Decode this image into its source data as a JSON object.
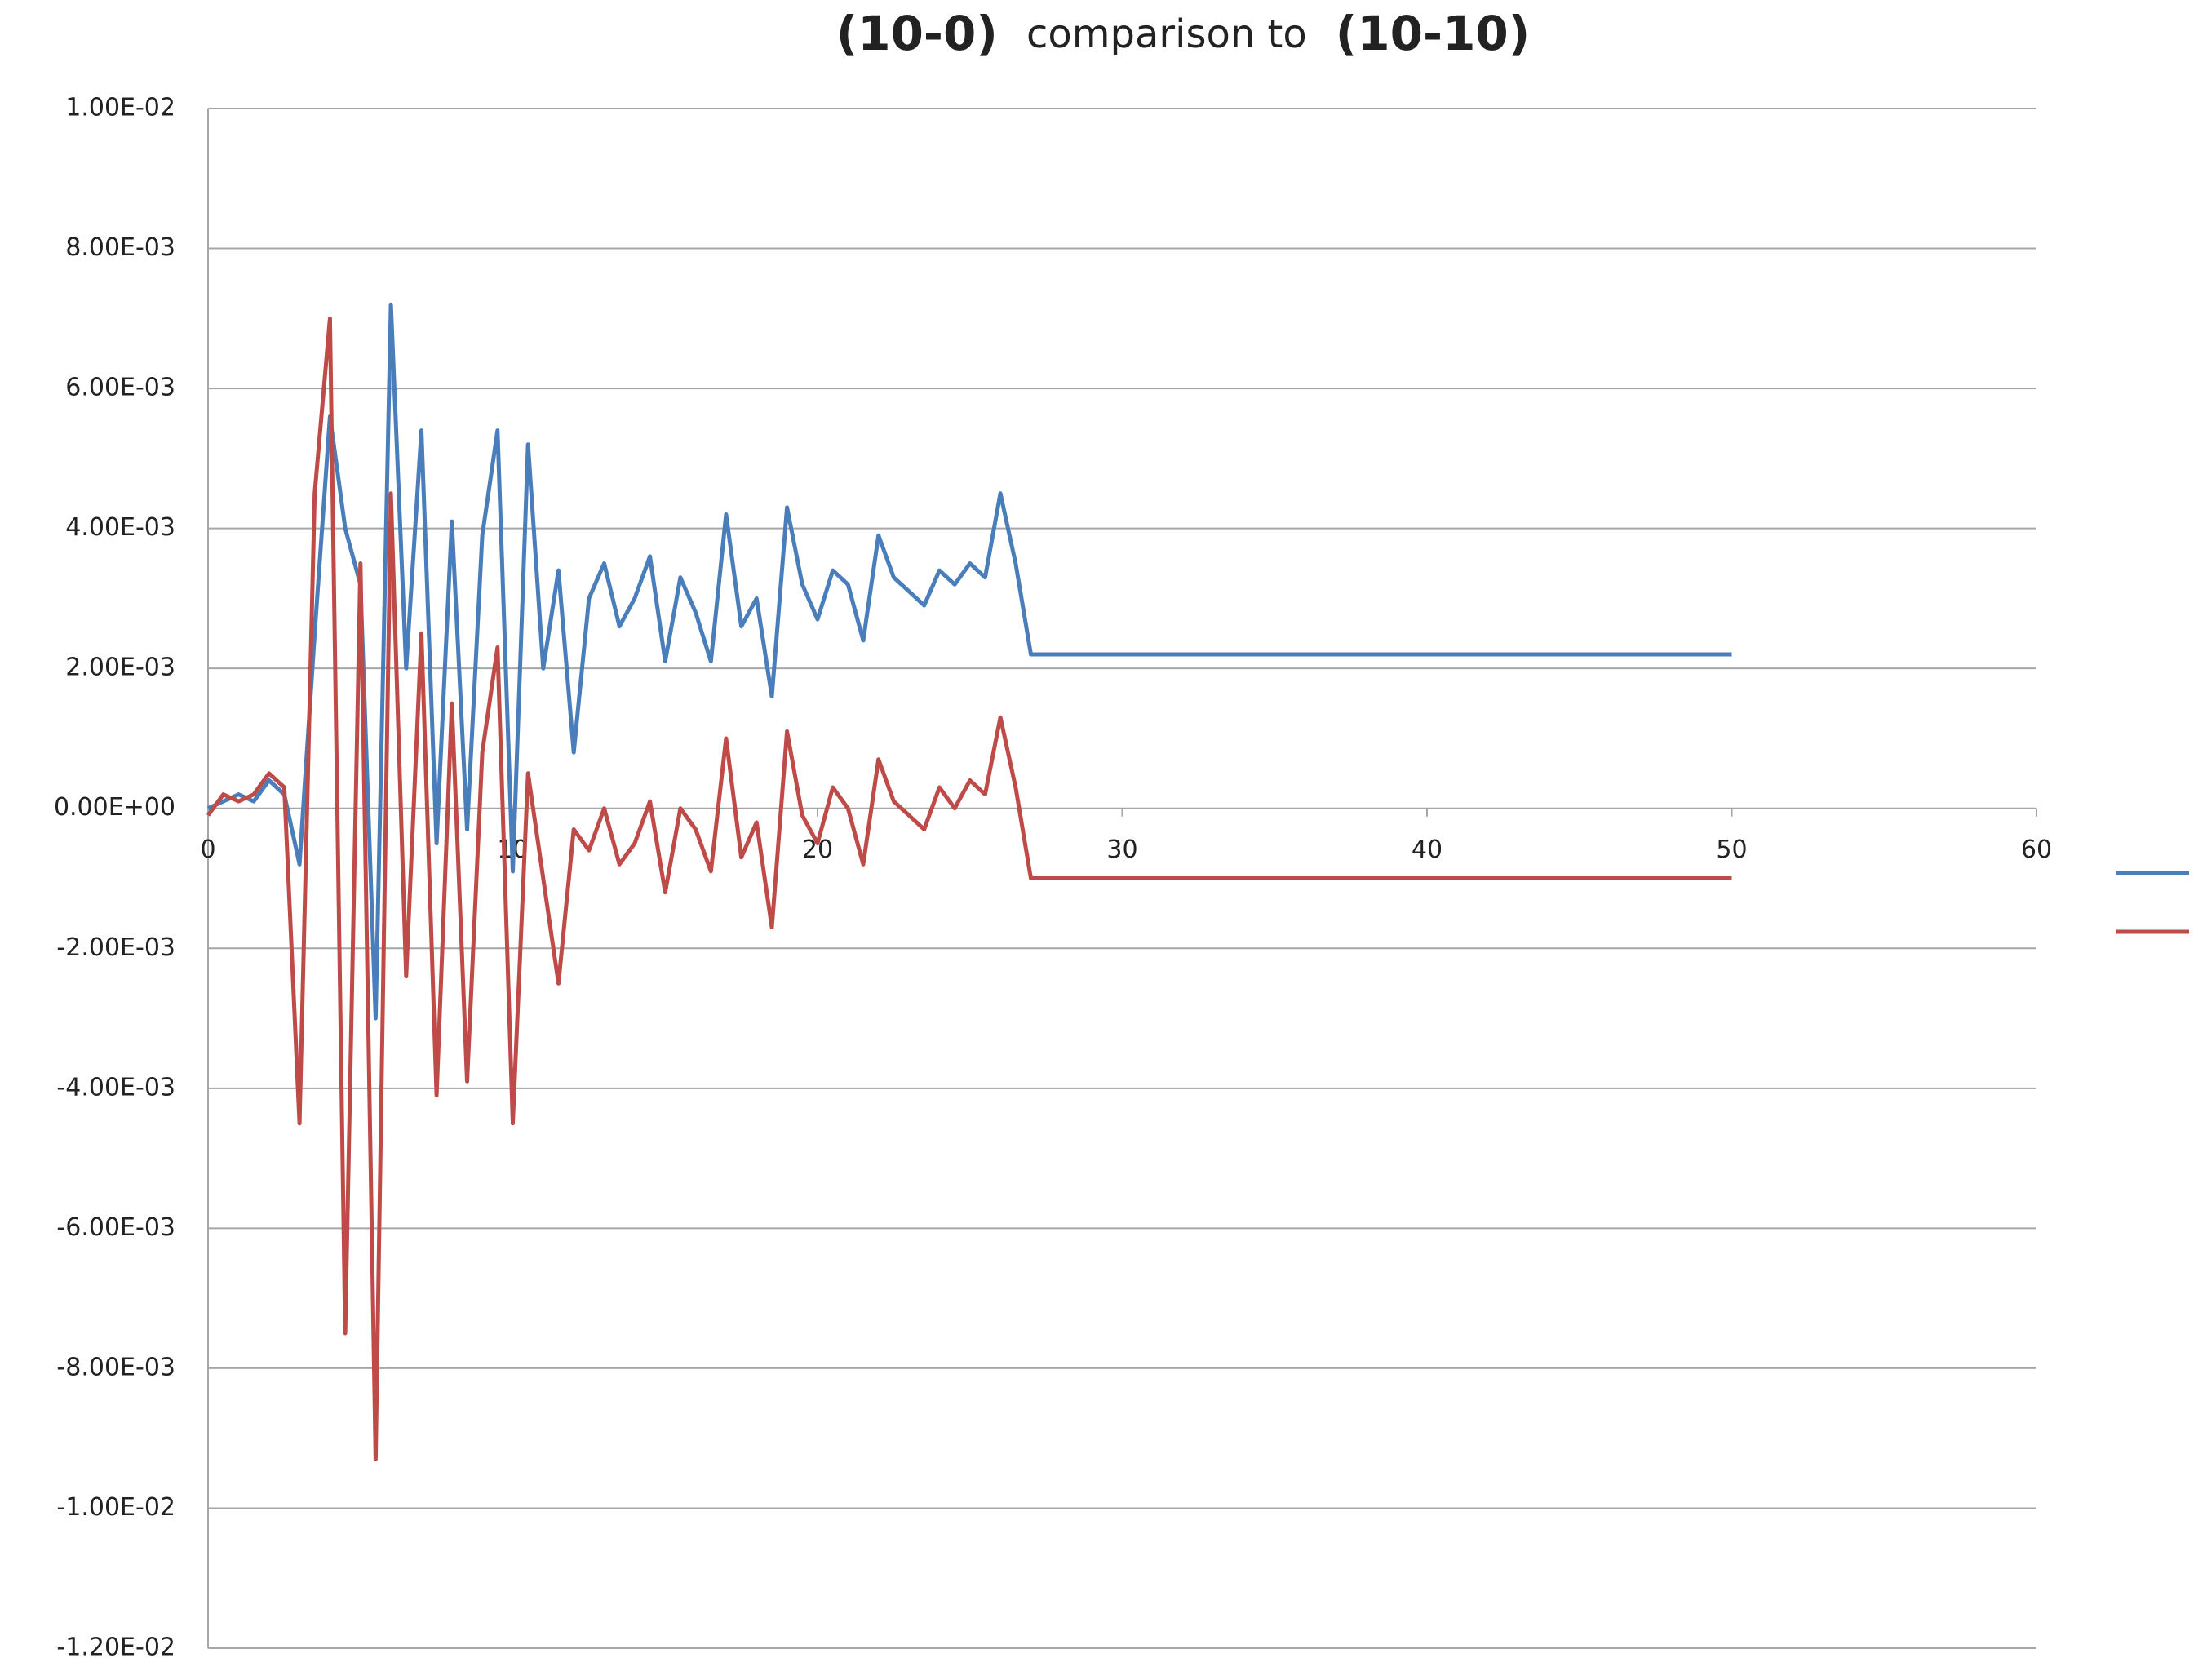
{
  "chart_data": {
    "type": "line",
    "title_parts": [
      "(10-0)",
      "comparison to",
      "(10-10)"
    ],
    "x": [
      0,
      0.5,
      1,
      1.5,
      2,
      2.5,
      3,
      3.5,
      4,
      4.5,
      5,
      5.5,
      6,
      6.5,
      7,
      7.5,
      8,
      8.5,
      9,
      9.5,
      10,
      10.5,
      11,
      11.5,
      12,
      12.5,
      13,
      13.5,
      14,
      14.5,
      15,
      15.5,
      16,
      16.5,
      17,
      17.5,
      18,
      18.5,
      19,
      19.5,
      20,
      20.5,
      21,
      21.5,
      22,
      22.5,
      23,
      23.5,
      24,
      24.5,
      25,
      25.5,
      26,
      26.5,
      27,
      27.5,
      50
    ],
    "series": [
      {
        "color": "#4a7ebb",
        "values": [
          0,
          0.0001,
          0.0002,
          0.0001,
          0.0004,
          0.0002,
          -0.0008,
          0.0025,
          0.0056,
          0.004,
          0.0032,
          -0.003,
          0.0072,
          0.002,
          0.0054,
          -0.0005,
          0.0041,
          -0.0003,
          0.0039,
          0.0054,
          -0.0009,
          0.0052,
          0.002,
          0.0034,
          0.0008,
          0.003,
          0.0035,
          0.0026,
          0.003,
          0.0036,
          0.0021,
          0.0033,
          0.0028,
          0.0021,
          0.0042,
          0.0026,
          0.003,
          0.0016,
          0.0043,
          0.0032,
          0.0027,
          0.0034,
          0.0032,
          0.0024,
          0.0039,
          0.0033,
          0.0031,
          0.0029,
          0.0034,
          0.0032,
          0.0035,
          0.0033,
          0.0045,
          0.0035,
          0.0022,
          0.0022,
          0.0022
        ]
      },
      {
        "color": "#be4b48",
        "values": [
          -0.0001,
          0.0002,
          0.0001,
          0.0002,
          0.0005,
          0.0003,
          -0.0045,
          0.0045,
          0.007,
          -0.0075,
          0.0035,
          -0.0093,
          0.0045,
          -0.0024,
          0.0025,
          -0.0041,
          0.0015,
          -0.0039,
          0.0008,
          0.0023,
          -0.0045,
          0.0005,
          -0.001,
          -0.0025,
          -0.0003,
          -0.0006,
          0,
          -0.0008,
          -0.0005,
          0.0001,
          -0.0012,
          0,
          -0.0003,
          -0.0009,
          0.001,
          -0.0007,
          -0.0002,
          -0.0017,
          0.0011,
          -0.0001,
          -0.0005,
          0.0003,
          0,
          -0.0008,
          0.0007,
          0.0001,
          -0.0001,
          -0.0003,
          0.0003,
          0,
          0.0004,
          0.0002,
          0.0013,
          0.0003,
          -0.001,
          -0.001,
          -0.001
        ]
      }
    ],
    "xlim": [
      0,
      60
    ],
    "xticks": [
      0,
      10,
      20,
      30,
      40,
      50,
      60
    ],
    "ylim": [
      -0.012,
      0.01
    ],
    "yticks": [
      {
        "value": -0.012,
        "label": "-1.20E-02"
      },
      {
        "value": -0.01,
        "label": "-1.00E-02"
      },
      {
        "value": -0.008,
        "label": "-8.00E-03"
      },
      {
        "value": -0.006,
        "label": "-6.00E-03"
      },
      {
        "value": -0.004,
        "label": "-4.00E-03"
      },
      {
        "value": -0.002,
        "label": "-2.00E-03"
      },
      {
        "value": 0,
        "label": "0.00E+00"
      },
      {
        "value": 0.002,
        "label": "2.00E-03"
      },
      {
        "value": 0.004,
        "label": "4.00E-03"
      },
      {
        "value": 0.006,
        "label": "6.00E-03"
      },
      {
        "value": 0.008,
        "label": "8.00E-03"
      },
      {
        "value": 0.01,
        "label": "1.00E-02"
      }
    ],
    "grid": true,
    "legend": "right"
  }
}
